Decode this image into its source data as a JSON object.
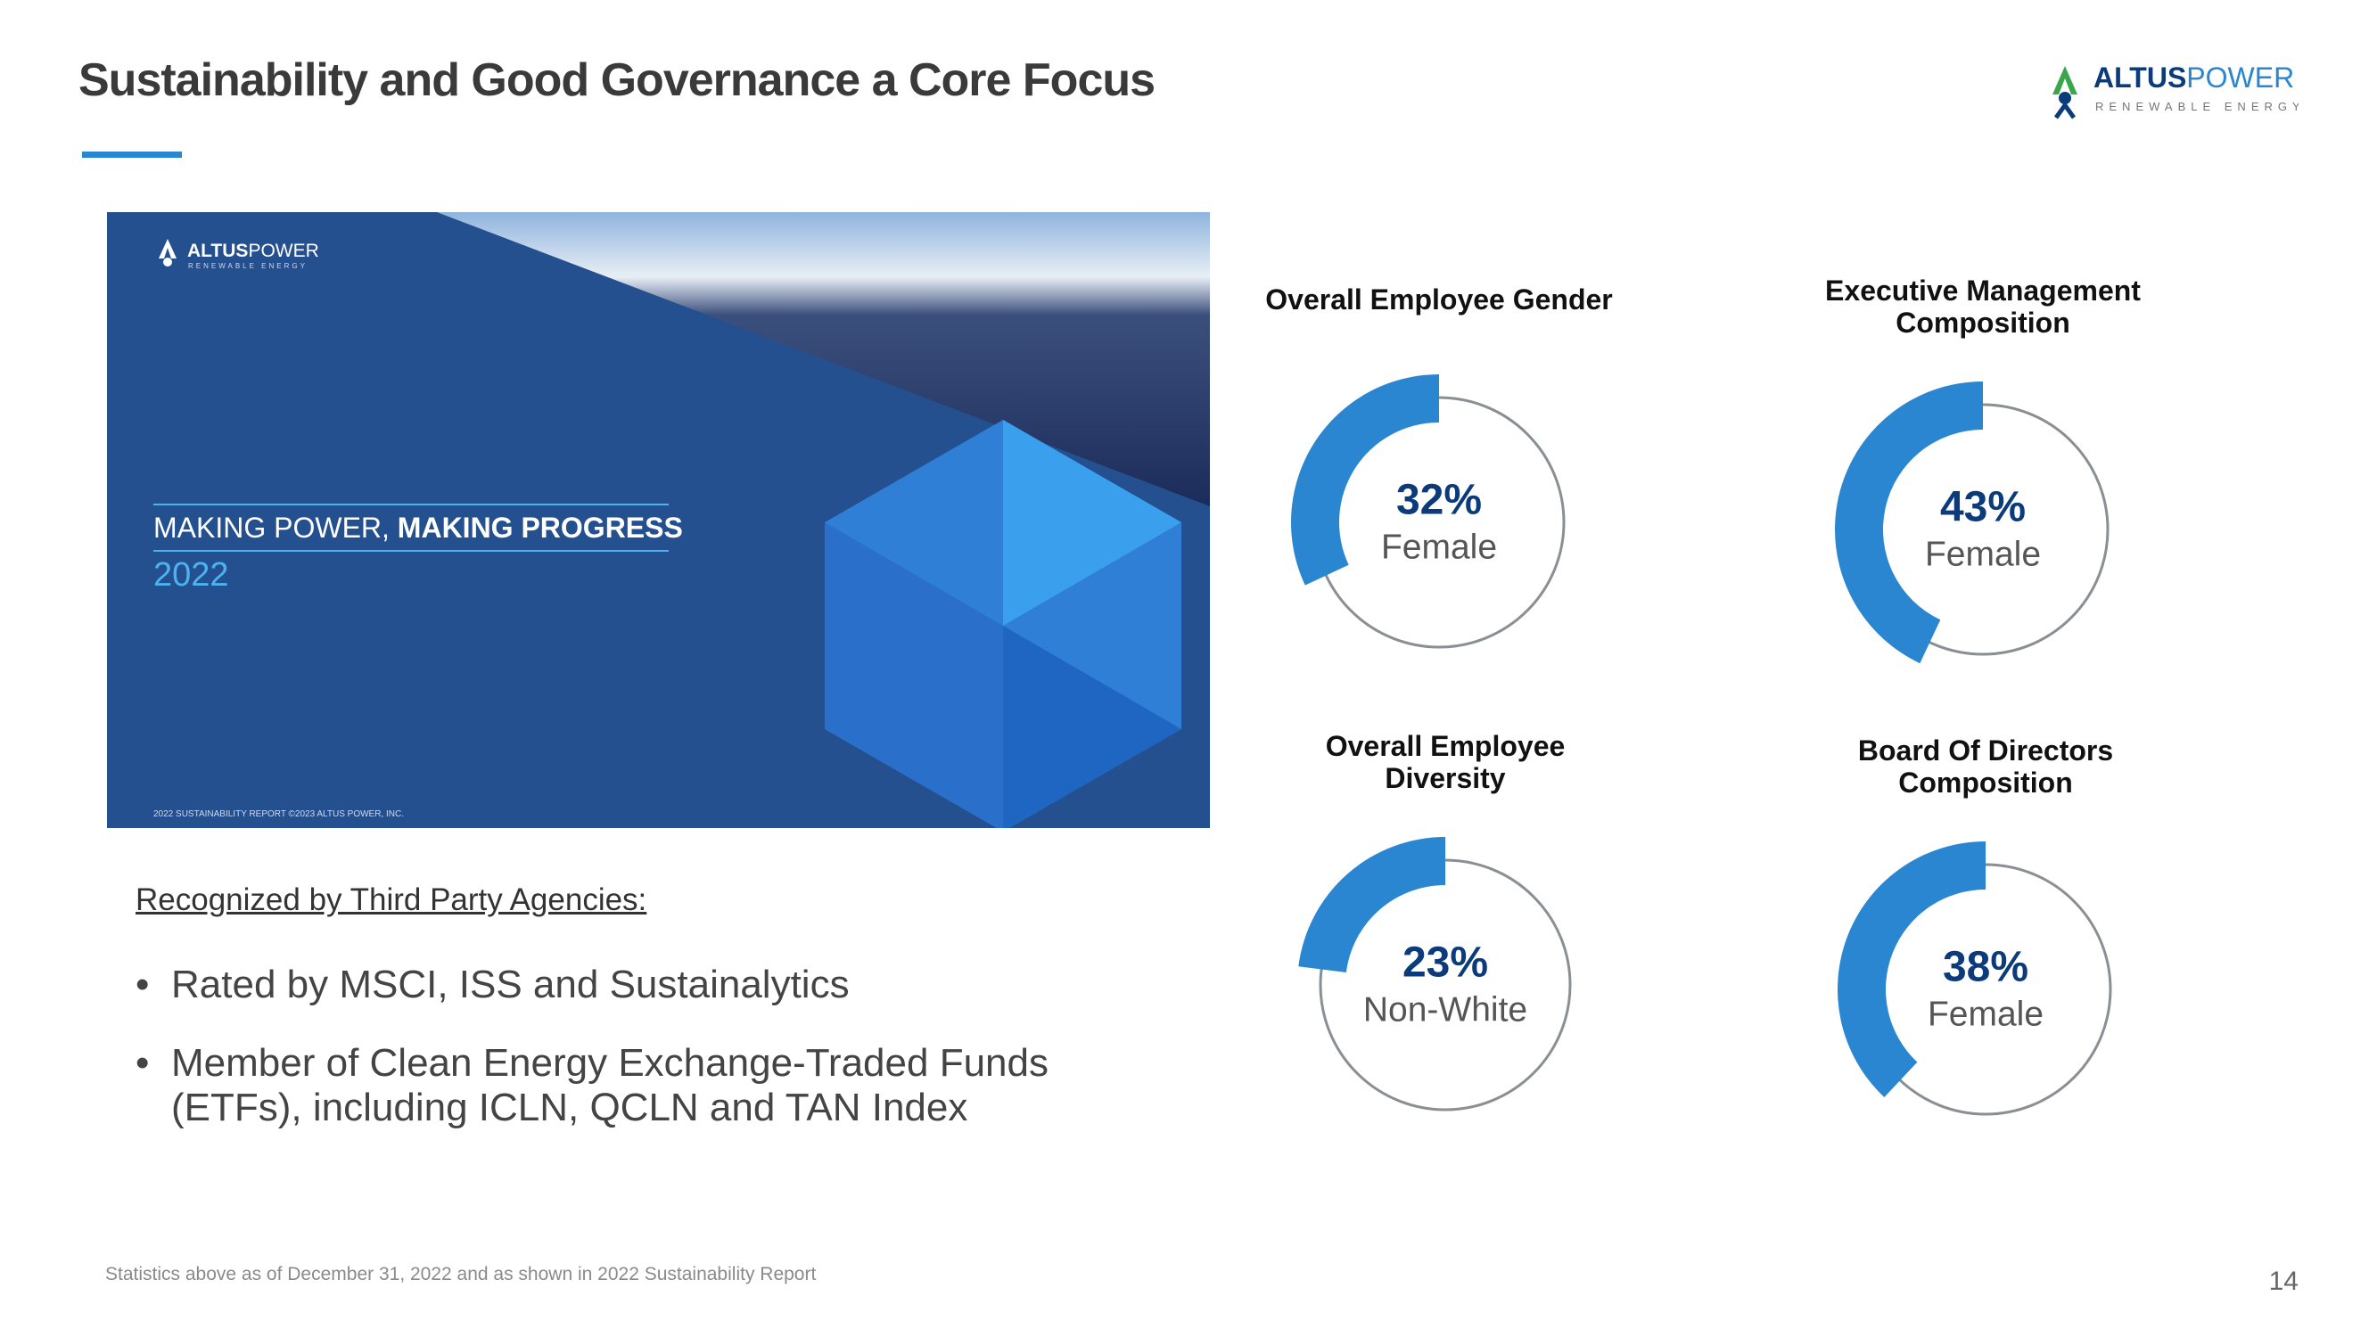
{
  "header": {
    "title": "Sustainability and Good Governance a Core Focus",
    "logo": {
      "brand_bold": "ALTUS",
      "brand_light": "POWER",
      "tagline": "RENEWABLE ENERGY"
    }
  },
  "cover": {
    "brand_bold": "ALTUS",
    "brand_light": "POWER",
    "tagline": "RENEWABLE ENERGY",
    "headline_light": "MAKING POWER,",
    "headline_bold": "MAKING PROGRESS",
    "year": "2022",
    "footer": "2022 SUSTAINABILITY REPORT ©2023 ALTUS POWER, INC."
  },
  "recognition": {
    "heading": "Recognized by Third Party Agencies:",
    "bullets": [
      "Rated by MSCI, ISS and Sustainalytics",
      "Member of Clean Energy Exchange-Traded Funds (ETFs), including ICLN, QCLN and TAN Index"
    ]
  },
  "chart_data": [
    {
      "type": "donut",
      "title": "Overall Employee Gender",
      "values": [
        32
      ],
      "value_labels": [
        "32%"
      ],
      "labels": [
        "Female"
      ],
      "color": "#2a86d1",
      "track_color": "#8a8f94"
    },
    {
      "type": "donut",
      "title": "Executive Management Composition",
      "values": [
        43
      ],
      "value_labels": [
        "43%"
      ],
      "labels": [
        "Female"
      ],
      "color": "#2a86d1",
      "track_color": "#8a8f94"
    },
    {
      "type": "donut",
      "title": "Overall Employee Diversity",
      "values": [
        23
      ],
      "value_labels": [
        "23%"
      ],
      "labels": [
        "Non-White"
      ],
      "color": "#2a86d1",
      "track_color": "#8a8f94"
    },
    {
      "type": "donut",
      "title": "Board Of Directors Composition",
      "values": [
        38
      ],
      "value_labels": [
        "38%"
      ],
      "labels": [
        "Female"
      ],
      "color": "#2a86d1",
      "track_color": "#8a8f94"
    }
  ],
  "footnote": "Statistics above as of December 31, 2022 and as shown in 2022 Sustainability Report",
  "page_number": "14"
}
